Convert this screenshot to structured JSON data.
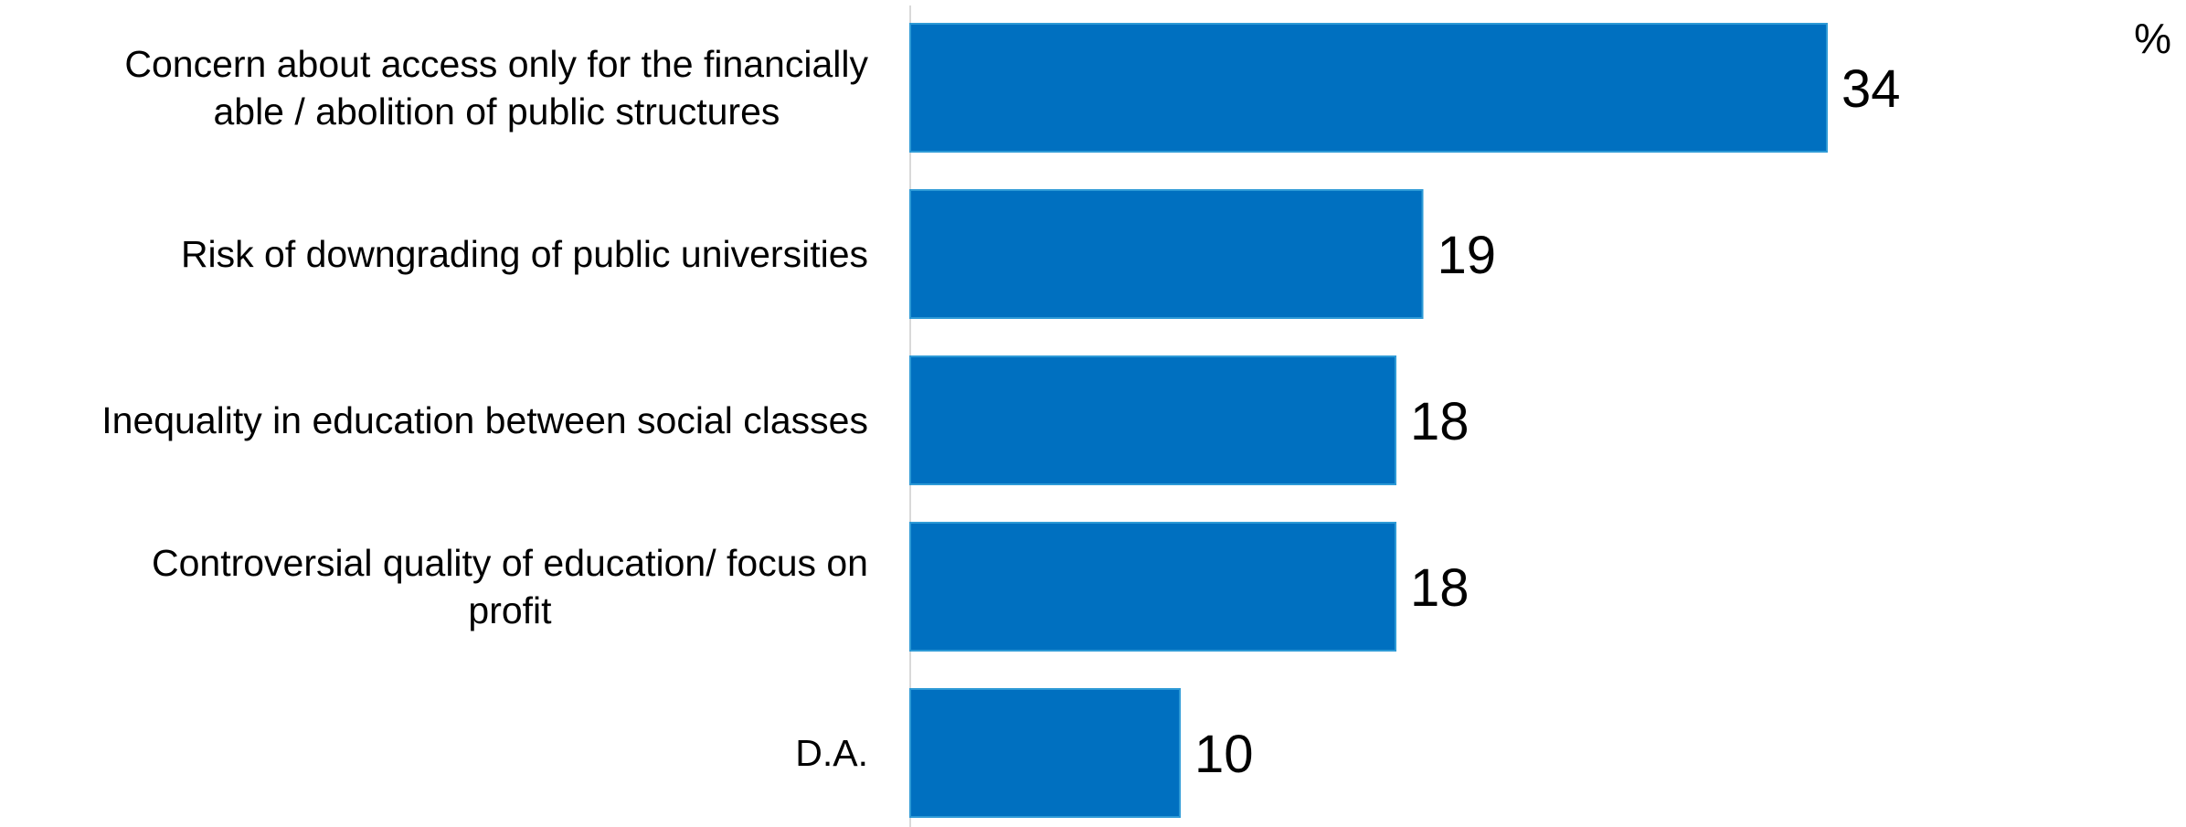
{
  "chart_data": {
    "type": "bar",
    "orientation": "horizontal",
    "unit": "%",
    "categories": [
      [
        "Concern about access only for the financially",
        "able / abolition of public structures"
      ],
      [
        "Risk of downgrading of public universities"
      ],
      [
        "Inequality in education between social classes"
      ],
      [
        "Controversial quality of education/ focus on",
        "profit"
      ],
      [
        "D.A."
      ]
    ],
    "values": [
      34,
      19,
      18,
      18,
      10
    ],
    "xlim": [
      0,
      40
    ],
    "grid": false,
    "legend": "none",
    "bar_color": "#0070C0"
  }
}
